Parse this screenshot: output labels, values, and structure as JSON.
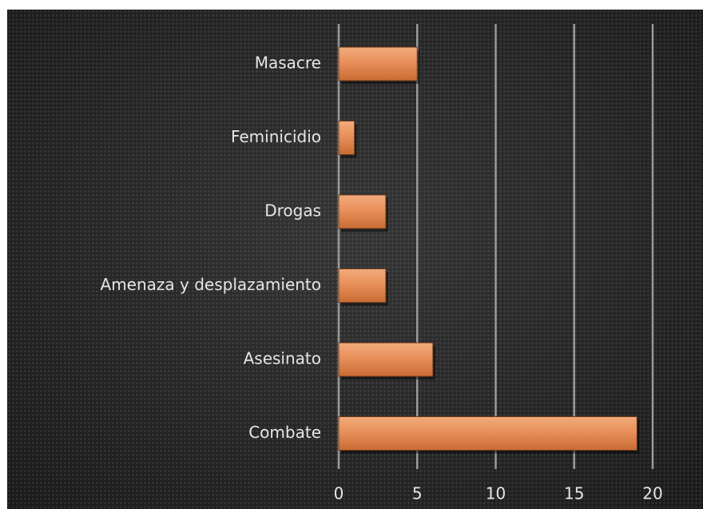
{
  "chart_data": {
    "type": "bar",
    "orientation": "horizontal",
    "categories": [
      "Masacre",
      "Feminicidio",
      "Drogas",
      "Amenaza y desplazamiento",
      "Asesinato",
      "Combate"
    ],
    "values": [
      5,
      1,
      3,
      3,
      6,
      19
    ],
    "xlim": [
      0,
      20
    ],
    "xticks": [
      0,
      5,
      10,
      15,
      20
    ],
    "grid": "vertical",
    "legend": "none",
    "colors": {
      "bar": "#e8905a",
      "bar_highlight": "#f2ab7c",
      "bar_shadow": "#c86b34",
      "background": "#262626",
      "text": "#e6e6e6",
      "grid": "#9a9a9a"
    }
  }
}
